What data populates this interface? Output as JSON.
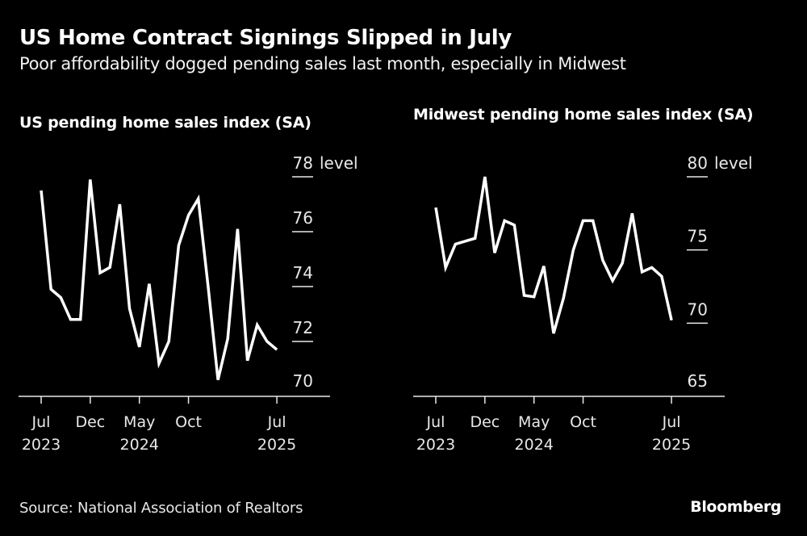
{
  "header": {
    "title": "US Home Contract Signings Slipped in July",
    "subtitle": "Poor affordability dogged pending sales last month, especially in Midwest"
  },
  "footer": {
    "source": "Source: National Association of Realtors",
    "brand": "Bloomberg"
  },
  "colors": {
    "background": "#000000",
    "line": "#ffffff",
    "text": "#ffffff",
    "axis": "#e8e8e8"
  },
  "chart_data": [
    {
      "type": "line",
      "title": "US pending home sales index (SA)",
      "xlabel": "",
      "ylabel": "level",
      "ylim": [
        70,
        78
      ],
      "yticks": [
        70,
        72,
        74,
        76,
        78
      ],
      "ytick_labels": [
        "70",
        "72",
        "74",
        "76",
        "78 level"
      ],
      "xtick_labels": [
        {
          "month": "Jul",
          "year": "2023",
          "index": 0
        },
        {
          "month": "Dec",
          "year": "",
          "index": 5
        },
        {
          "month": "May",
          "year": "2024",
          "index": 10
        },
        {
          "month": "Oct",
          "year": "",
          "index": 15
        },
        {
          "month": "Jul",
          "year": "2025",
          "index": 24
        }
      ],
      "grid": false,
      "x": [
        "2023-07",
        "2023-08",
        "2023-09",
        "2023-10",
        "2023-11",
        "2023-12",
        "2024-01",
        "2024-02",
        "2024-03",
        "2024-04",
        "2024-05",
        "2024-06",
        "2024-07",
        "2024-08",
        "2024-09",
        "2024-10",
        "2024-11",
        "2024-12",
        "2025-01",
        "2025-02",
        "2025-03",
        "2025-04",
        "2025-05",
        "2025-06",
        "2025-07"
      ],
      "series": [
        {
          "name": "US pending home sales index",
          "values": [
            77.5,
            73.9,
            73.6,
            72.8,
            72.8,
            77.9,
            74.5,
            74.7,
            77.0,
            73.2,
            71.8,
            74.1,
            71.2,
            72.0,
            75.5,
            76.6,
            77.2,
            74.0,
            70.6,
            72.1,
            76.1,
            71.3,
            72.6,
            72.0,
            71.7
          ]
        }
      ]
    },
    {
      "type": "line",
      "title": "Midwest pending home sales index (SA)",
      "xlabel": "",
      "ylabel": "level",
      "ylim": [
        65,
        80
      ],
      "yticks": [
        65,
        70,
        75,
        80
      ],
      "ytick_labels": [
        "65",
        "70",
        "75",
        "80 level"
      ],
      "xtick_labels": [
        {
          "month": "Jul",
          "year": "2023",
          "index": 0
        },
        {
          "month": "Dec",
          "year": "",
          "index": 5
        },
        {
          "month": "May",
          "year": "2024",
          "index": 10
        },
        {
          "month": "Oct",
          "year": "",
          "index": 15
        },
        {
          "month": "Jul",
          "year": "2025",
          "index": 24
        }
      ],
      "grid": false,
      "x": [
        "2023-07",
        "2023-08",
        "2023-09",
        "2023-10",
        "2023-11",
        "2023-12",
        "2024-01",
        "2024-02",
        "2024-03",
        "2024-04",
        "2024-05",
        "2024-06",
        "2024-07",
        "2024-08",
        "2024-09",
        "2024-10",
        "2024-11",
        "2024-12",
        "2025-01",
        "2025-02",
        "2025-03",
        "2025-04",
        "2025-05",
        "2025-06",
        "2025-07"
      ],
      "series": [
        {
          "name": "Midwest pending home sales index",
          "values": [
            77.9,
            73.8,
            75.4,
            75.6,
            75.8,
            80.0,
            74.8,
            77.0,
            76.7,
            71.9,
            71.8,
            73.9,
            69.3,
            71.7,
            75.0,
            77.0,
            77.0,
            74.3,
            72.9,
            74.1,
            77.5,
            73.5,
            73.8,
            73.2,
            70.2
          ]
        }
      ]
    }
  ]
}
